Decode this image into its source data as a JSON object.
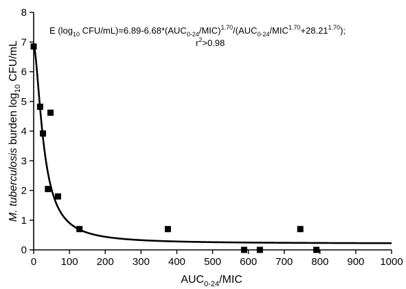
{
  "chart_data": {
    "type": "scatter",
    "xlim": [
      0,
      1000
    ],
    "ylim": [
      0,
      8
    ],
    "x_ticks": [
      "0",
      "100",
      "200",
      "300",
      "400",
      "500",
      "600",
      "700",
      "800",
      "900",
      "1000"
    ],
    "y_ticks": [
      "0",
      "1",
      "2",
      "3",
      "4",
      "5",
      "6",
      "7",
      "8"
    ],
    "points": [
      {
        "x": 0,
        "y": 6.85
      },
      {
        "x": 18,
        "y": 4.82
      },
      {
        "x": 26,
        "y": 3.92
      },
      {
        "x": 40,
        "y": 2.05
      },
      {
        "x": 47,
        "y": 4.62
      },
      {
        "x": 68,
        "y": 1.8
      },
      {
        "x": 128,
        "y": 0.7
      },
      {
        "x": 375,
        "y": 0.7
      },
      {
        "x": 588,
        "y": 0.0
      },
      {
        "x": 632,
        "y": 0.0
      },
      {
        "x": 745,
        "y": 0.7
      },
      {
        "x": 790,
        "y": 0.0
      }
    ],
    "fit": {
      "E0": 6.89,
      "Emax": 6.68,
      "hill": 1.7,
      "ec50": 28.21
    },
    "grid": false
  },
  "labels": {
    "xlabel_main": "AUC",
    "xlabel_sub": "0-24",
    "xlabel_tail": "/MIC",
    "ylabel_italic": "M. tuberculosis",
    "ylabel_main": " burden log",
    "ylabel_sub": "10",
    "ylabel_tail": " CFU/mL"
  },
  "equation": {
    "p1": "E (log",
    "s1": "10",
    "p2": " CFU/mL)=6.89-6.68*(AUC",
    "s2": "0-24",
    "p3": "/MIC)",
    "s3": "1.70",
    "p4": "/(AUC",
    "s4": "0-24",
    "p5": "/MIC",
    "s5": "1.70",
    "p6": "+28.21",
    "s6": "1.70",
    "p7": ");",
    "r_pre": "r",
    "r_sup": "2",
    "r_post": ">0.98"
  }
}
